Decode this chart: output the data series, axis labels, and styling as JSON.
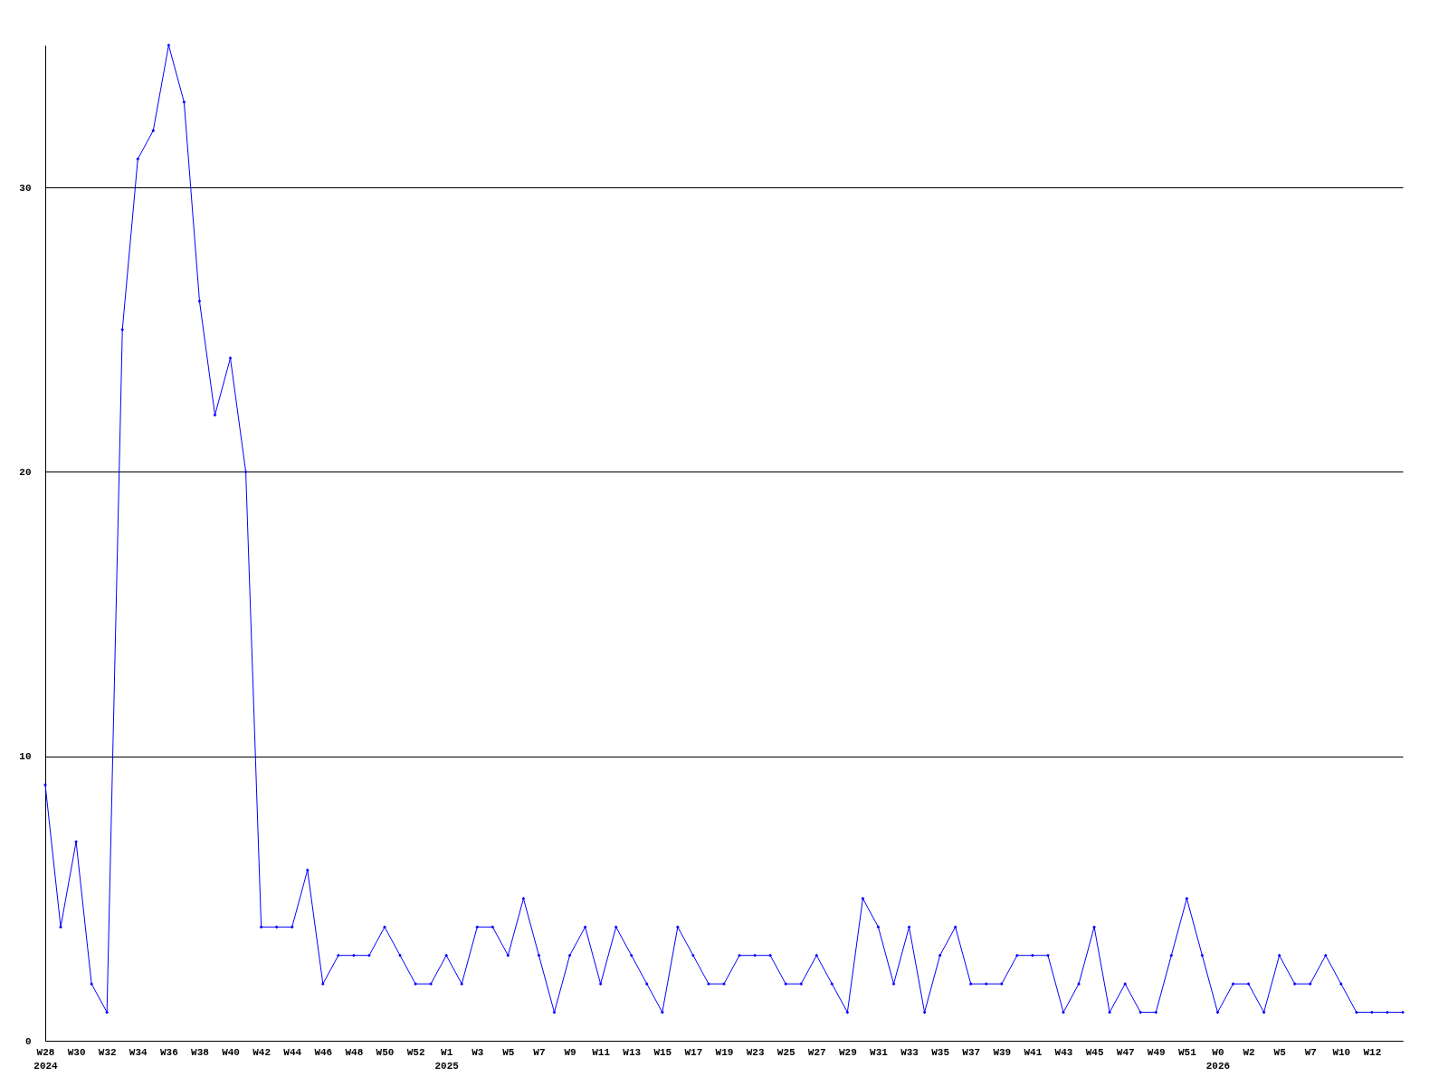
{
  "chart_data": {
    "type": "line",
    "categories": [
      "W28\n2024",
      null,
      "W30",
      null,
      "W32",
      null,
      "W34",
      null,
      "W36",
      null,
      "W38",
      null,
      "W40",
      null,
      "W42",
      null,
      "W44",
      null,
      "W46",
      null,
      "W48",
      null,
      "W50",
      null,
      "W52",
      null,
      "W1\n2025",
      null,
      "W3",
      null,
      "W5",
      null,
      "W7",
      null,
      "W9",
      null,
      "W11",
      null,
      "W13",
      null,
      "W15",
      null,
      "W17",
      null,
      "W19",
      null,
      "W23",
      null,
      "W25",
      null,
      "W27",
      null,
      "W29",
      null,
      "W31",
      null,
      "W33",
      null,
      "W35",
      null,
      "W37",
      null,
      "W39",
      null,
      "W41",
      null,
      "W43",
      null,
      "W45",
      null,
      "W47",
      null,
      "W49",
      null,
      "W51",
      null,
      "W0\n2026",
      null,
      "W2",
      null,
      "W5",
      null,
      "W7",
      null,
      "W10",
      null,
      "W12",
      null,
      null
    ],
    "series": [
      {
        "color": "#0000ff",
        "values": [
          9,
          4,
          7,
          2,
          1,
          25,
          31,
          32,
          35,
          33,
          26,
          22,
          24,
          20,
          4,
          4,
          4,
          6,
          2,
          3,
          3,
          3,
          4,
          3,
          2,
          2,
          3,
          2,
          4,
          4,
          3,
          5,
          3,
          1,
          3,
          4,
          2,
          4,
          3,
          2,
          1,
          4,
          3,
          2,
          2,
          3,
          3,
          3,
          2,
          2,
          3,
          2,
          1,
          5,
          4,
          2,
          4,
          1,
          3,
          4,
          2,
          2,
          2,
          3,
          3,
          3,
          1,
          2,
          4,
          1,
          2,
          1,
          1,
          3,
          5,
          3,
          1,
          2,
          2,
          1,
          3,
          2,
          2,
          3,
          2,
          1,
          1,
          1,
          1
        ]
      }
    ],
    "ylim": [
      0,
      35
    ],
    "yticks": [
      0,
      10,
      20,
      30
    ],
    "grid": "y",
    "marker": "diamond",
    "line_style": "solid"
  }
}
